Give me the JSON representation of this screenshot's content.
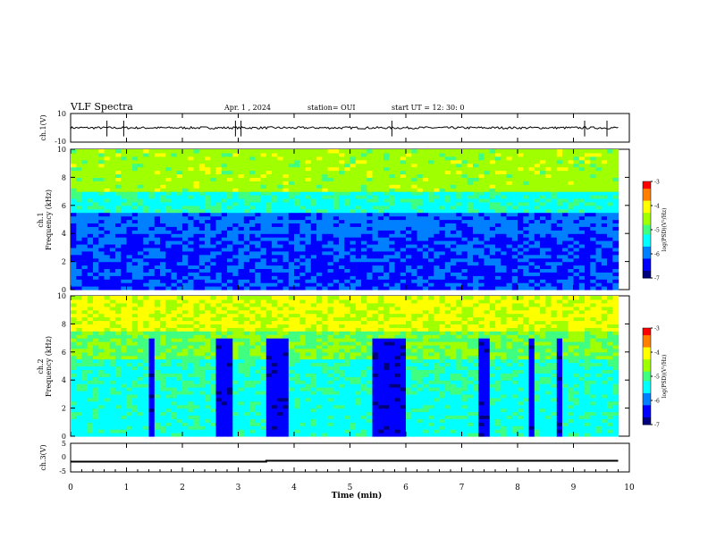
{
  "header": {
    "title": "VLF Spectra",
    "date": "Apr. 1 , 2024",
    "station": "station= OUI",
    "start_ut": "start UT = 12: 30: 0"
  },
  "chart_data": [
    {
      "type": "line",
      "name": "ch1-waveform",
      "ylabel": "ch.1(V)",
      "ylim": [
        -10,
        10
      ],
      "yticks": [
        "10",
        "-10"
      ],
      "x": [
        0,
        10
      ],
      "baseline": 0
    },
    {
      "type": "heatmap",
      "name": "ch1-spectrogram",
      "ylabel": "ch.1\nFrequency (kHz)",
      "ylim": [
        0,
        10
      ],
      "yticks": [
        "0",
        "2",
        "4",
        "6",
        "8",
        "10"
      ],
      "xlim": [
        0,
        9.8
      ],
      "colorbar": {
        "label": "log(PSD)(V²/Hz)",
        "range": [
          -7,
          -3
        ],
        "ticks": [
          "-3",
          "-4",
          "-5",
          "-6",
          "-7"
        ]
      }
    },
    {
      "type": "heatmap",
      "name": "ch2-spectrogram",
      "ylabel": "ch.2\nFrequency (kHz)",
      "ylim": [
        0,
        10
      ],
      "yticks": [
        "0",
        "2",
        "4",
        "6",
        "8",
        "10"
      ],
      "xlim": [
        0,
        9.8
      ],
      "dark_intervals_min": [
        [
          1.45,
          1.5
        ],
        [
          2.65,
          2.85
        ],
        [
          3.55,
          3.9
        ],
        [
          5.4,
          5.95
        ],
        [
          7.3,
          7.5
        ],
        [
          8.2,
          8.35
        ],
        [
          8.7,
          8.8
        ]
      ],
      "colorbar": {
        "label": "log(PSD)(V²/Hz)",
        "range": [
          -7,
          -3
        ],
        "ticks": [
          "-3",
          "-4",
          "-5",
          "-6",
          "-7"
        ]
      }
    },
    {
      "type": "line",
      "name": "ch3-level",
      "ylabel": "ch.3(V)",
      "ylim": [
        -5,
        5
      ],
      "yticks": [
        "5",
        "0",
        "-5"
      ],
      "x": [
        0,
        3.5,
        3.5,
        9.8
      ],
      "y": [
        -1.4,
        -1.4,
        -1.1,
        -1.1
      ]
    }
  ],
  "xaxis": {
    "label": "Time (min)",
    "ticks": [
      "0",
      "1",
      "2",
      "3",
      "4",
      "5",
      "6",
      "7",
      "8",
      "9",
      "10"
    ],
    "range": [
      0,
      10
    ]
  },
  "colors": {
    "cmap": [
      "#00007f",
      "#0000ff",
      "#0080ff",
      "#00ffff",
      "#40ff80",
      "#a0ff00",
      "#ffff00",
      "#ff8000",
      "#ff0000"
    ],
    "frame": "#000000"
  }
}
